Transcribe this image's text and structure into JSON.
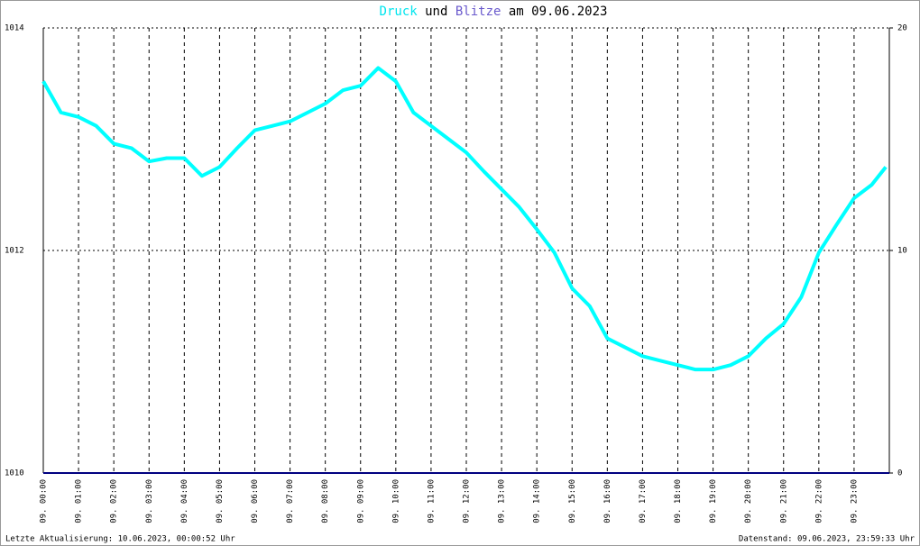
{
  "chart_data": {
    "type": "line",
    "title_parts": [
      "und",
      "am 09.06.2023"
    ],
    "footer_left": "Letzte Aktualisierung: 10.06.2023, 00:00:52 Uhr",
    "footer_right": "Datenstand: 09.06.2023, 23:59:33 Uhr",
    "x": [
      0,
      0.5,
      1,
      1.5,
      2,
      2.5,
      3,
      3.5,
      4,
      4.5,
      5,
      5.5,
      6,
      6.5,
      7,
      7.5,
      8,
      8.5,
      9,
      9.5,
      10,
      10.5,
      11,
      11.5,
      12,
      12.5,
      13,
      13.5,
      14,
      14.5,
      15,
      15.5,
      16,
      16.5,
      17,
      17.5,
      18,
      18.5,
      19,
      19.5,
      20,
      20.5,
      21,
      21.5,
      22,
      22.5,
      23,
      23.5,
      23.9
    ],
    "series": [
      {
        "name": "Druck",
        "color": "#00ffff",
        "values": [
          1013.52,
          1013.24,
          1013.2,
          1013.12,
          1012.96,
          1012.92,
          1012.8,
          1012.83,
          1012.83,
          1012.67,
          1012.75,
          1012.92,
          1013.08,
          1013.12,
          1013.16,
          1013.24,
          1013.32,
          1013.44,
          1013.48,
          1013.64,
          1013.52,
          1013.24,
          1013.12,
          1013.0,
          1012.88,
          1012.71,
          1012.55,
          1012.39,
          1012.19,
          1011.98,
          1011.66,
          1011.5,
          1011.21,
          1011.13,
          1011.05,
          1011.01,
          1010.97,
          1010.93,
          1010.93,
          1010.97,
          1011.05,
          1011.21,
          1011.34,
          1011.58,
          1011.98,
          1012.23,
          1012.47,
          1012.59,
          1012.75
        ]
      },
      {
        "name": "Blitze",
        "color": "#6a5acd",
        "line_color": "#000080",
        "axis": "y2",
        "x": [
          0,
          24
        ],
        "values": [
          0,
          0
        ]
      }
    ],
    "xlim": [
      0,
      24
    ],
    "xticks": [
      {
        "value": 0,
        "label": "09. 00:00"
      },
      {
        "value": 1,
        "label": "09. 01:00"
      },
      {
        "value": 2,
        "label": "09. 02:00"
      },
      {
        "value": 3,
        "label": "09. 03:00"
      },
      {
        "value": 4,
        "label": "09. 04:00"
      },
      {
        "value": 5,
        "label": "09. 05:00"
      },
      {
        "value": 6,
        "label": "09. 06:00"
      },
      {
        "value": 7,
        "label": "09. 07:00"
      },
      {
        "value": 8,
        "label": "09. 08:00"
      },
      {
        "value": 9,
        "label": "09. 09:00"
      },
      {
        "value": 10,
        "label": "09. 10:00"
      },
      {
        "value": 11,
        "label": "09. 11:00"
      },
      {
        "value": 12,
        "label": "09. 12:00"
      },
      {
        "value": 13,
        "label": "09. 13:00"
      },
      {
        "value": 14,
        "label": "09. 14:00"
      },
      {
        "value": 15,
        "label": "09. 15:00"
      },
      {
        "value": 16,
        "label": "09. 16:00"
      },
      {
        "value": 17,
        "label": "09. 17:00"
      },
      {
        "value": 18,
        "label": "09. 18:00"
      },
      {
        "value": 19,
        "label": "09. 19:00"
      },
      {
        "value": 20,
        "label": "09. 20:00"
      },
      {
        "value": 21,
        "label": "09. 21:00"
      },
      {
        "value": 22,
        "label": "09. 22:00"
      },
      {
        "value": 23,
        "label": "09. 23:00"
      }
    ],
    "ylim": [
      1010,
      1014
    ],
    "yticks": [
      1010,
      1012,
      1014
    ],
    "y2lim": [
      0,
      20
    ],
    "y2ticks": [
      0,
      10,
      20
    ],
    "grid": true
  }
}
